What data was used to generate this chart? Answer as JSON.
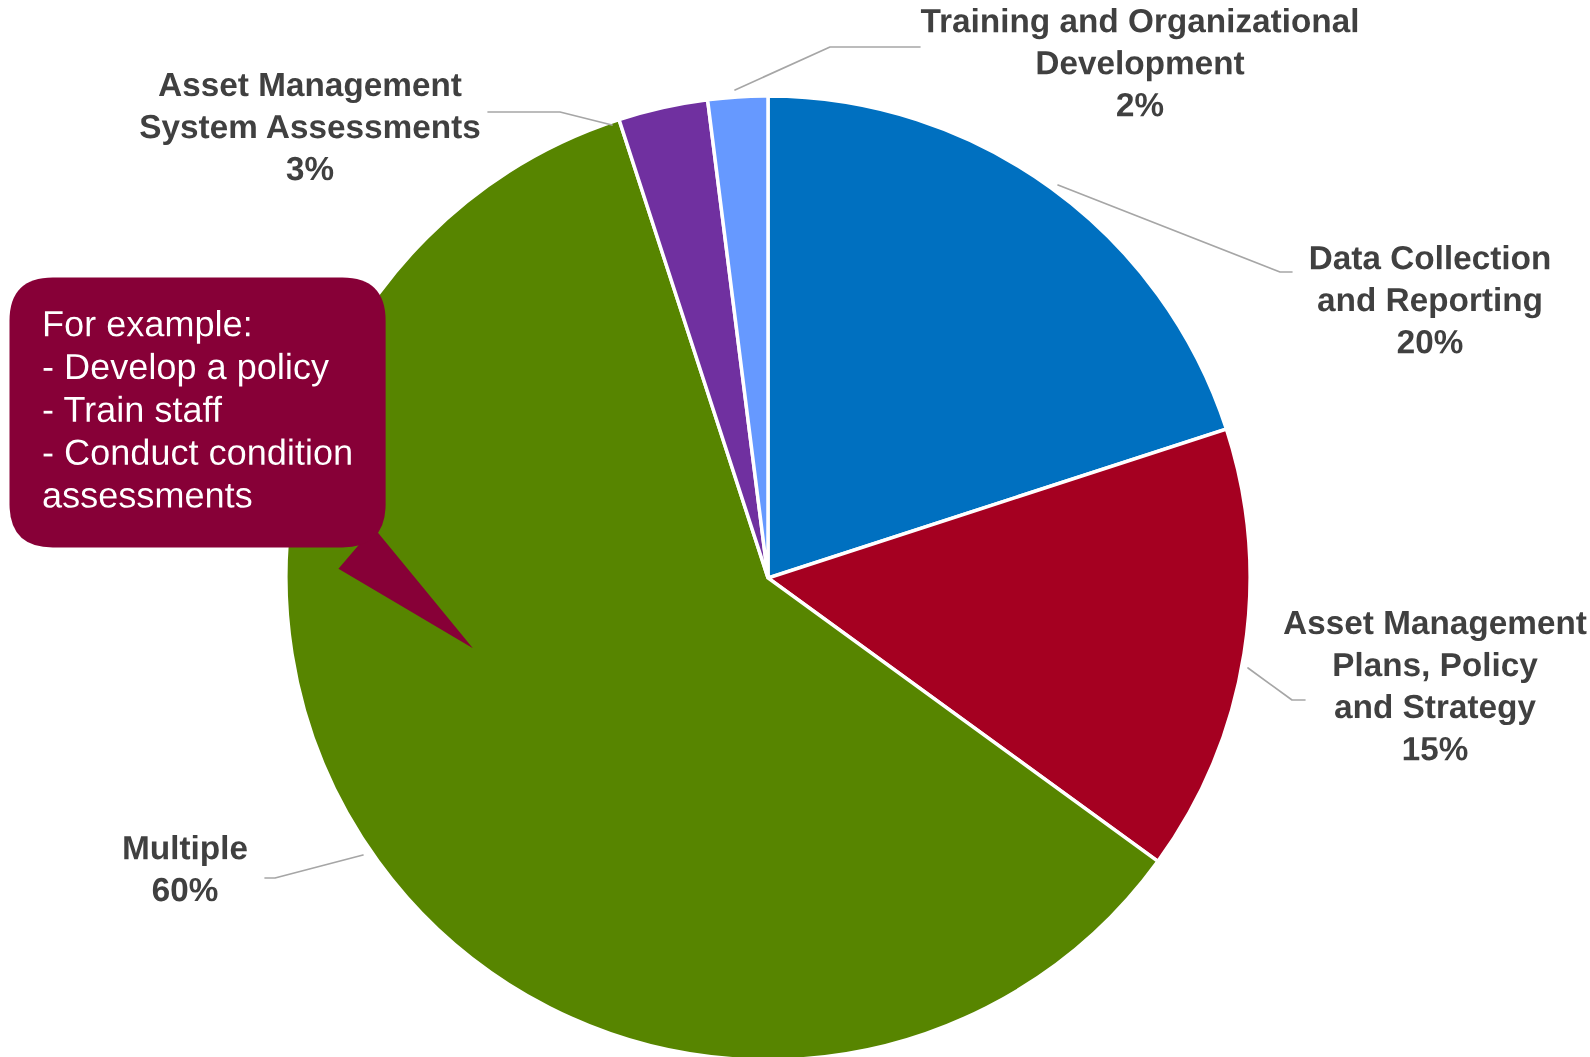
{
  "chart_data": {
    "type": "pie",
    "categories": [
      "Data Collection and Reporting",
      "Asset Management Plans, Policy and Strategy",
      "Multiple",
      "Asset Management System Assessments",
      "Training and Organizational Development"
    ],
    "values": [
      20,
      15,
      60,
      3,
      2
    ],
    "value_labels": [
      "20%",
      "15%",
      "60%",
      "3%",
      "2%"
    ],
    "colors": [
      "#0070c0",
      "#a50021",
      "#578500",
      "#7030a0",
      "#6699ff"
    ],
    "annotations": [
      "For example:\n- Develop a policy\n- Train staff\n- Conduct condition\nassessments"
    ]
  }
}
